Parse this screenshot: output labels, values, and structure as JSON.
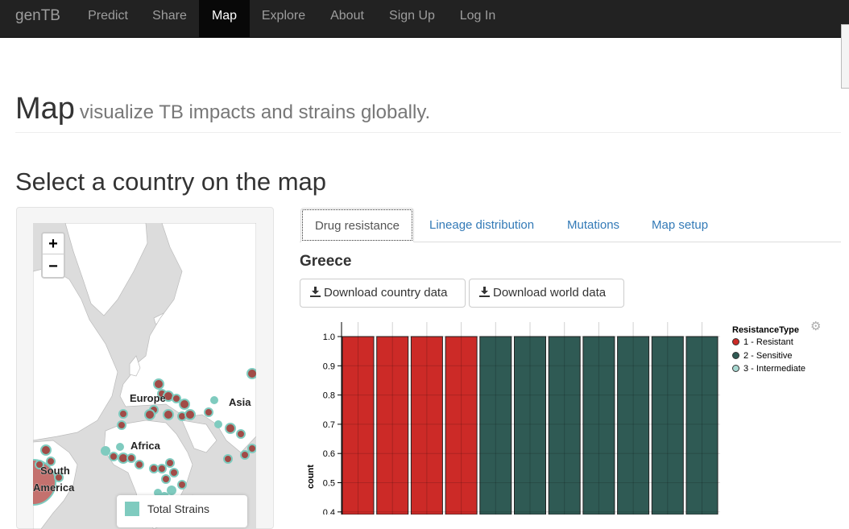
{
  "nav": {
    "brand": "genTB",
    "items": [
      {
        "label": "Predict",
        "active": false
      },
      {
        "label": "Share",
        "active": false
      },
      {
        "label": "Map",
        "active": true
      },
      {
        "label": "Explore",
        "active": false
      },
      {
        "label": "About",
        "active": false
      },
      {
        "label": "Sign Up",
        "active": false
      },
      {
        "label": "Log In",
        "active": false
      }
    ]
  },
  "header": {
    "title": "Map",
    "subtitle": "visualize TB impacts and strains globally."
  },
  "section_title": "Select a country on the map",
  "map": {
    "zoom_in": "+",
    "zoom_out": "−",
    "labels": {
      "europe": "Europe",
      "asia": "Asia",
      "africa": "Africa",
      "south_america_1": "South",
      "south_america_2": "America"
    },
    "legend": {
      "label": "Total Strains",
      "color": "#7fcbbf"
    }
  },
  "tabs": [
    {
      "label": "Drug resistance",
      "active": true
    },
    {
      "label": "Lineage distribution",
      "active": false
    },
    {
      "label": "Mutations",
      "active": false
    },
    {
      "label": "Map setup",
      "active": false
    }
  ],
  "country": "Greece",
  "buttons": {
    "download_country": "Download country data",
    "download_world": "Download world data"
  },
  "chart_data": {
    "type": "bar",
    "ylabel": "count",
    "ylim": [
      0.4,
      1.0
    ],
    "y_ticks": [
      "1.0",
      "0.9",
      "0.8",
      "0.7",
      "0.6",
      "0.5",
      "0.4"
    ],
    "legend_title": "ResistanceType",
    "series": [
      {
        "name": "1 - Resistant",
        "color": "#cc2a27"
      },
      {
        "name": "2 - Sensitive",
        "color": "#2f5a54"
      },
      {
        "name": "3 - Intermediate",
        "color": "#a7d8d1"
      }
    ],
    "bars": [
      {
        "value": 1,
        "series": 0
      },
      {
        "value": 1,
        "series": 0
      },
      {
        "value": 1,
        "series": 0
      },
      {
        "value": 1,
        "series": 0
      },
      {
        "value": 1,
        "series": 1
      },
      {
        "value": 1,
        "series": 1
      },
      {
        "value": 1,
        "series": 1
      },
      {
        "value": 1,
        "series": 1
      },
      {
        "value": 1,
        "series": 1
      },
      {
        "value": 1,
        "series": 1
      },
      {
        "value": 1,
        "series": 1
      }
    ]
  }
}
